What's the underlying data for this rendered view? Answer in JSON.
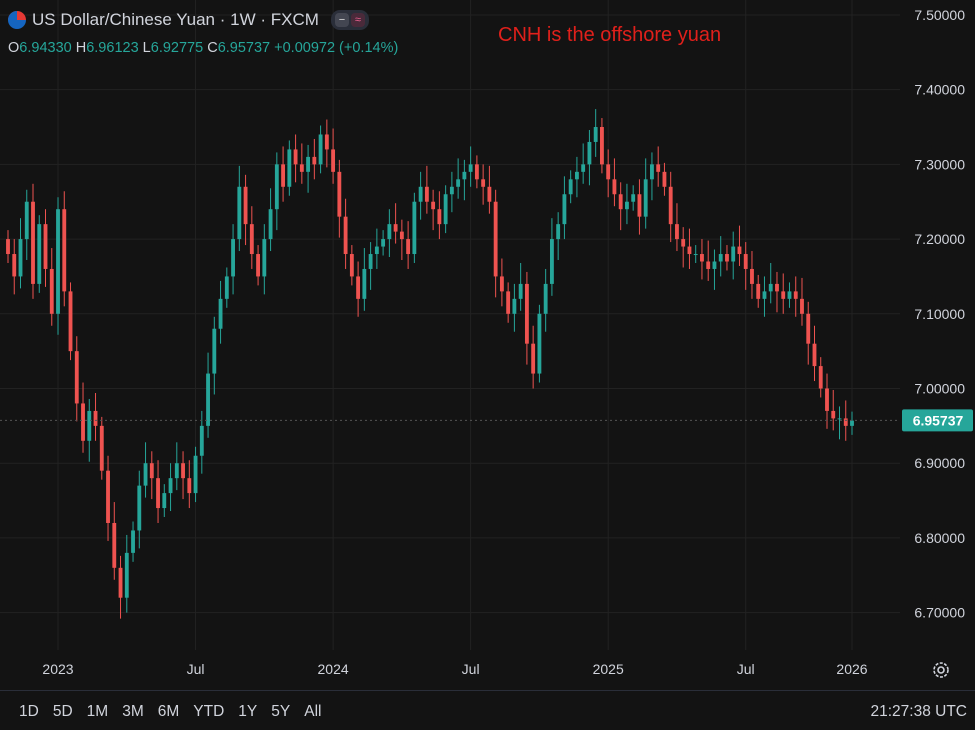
{
  "header": {
    "symbol_title": "US Dollar/Chinese Yuan · 1W · FXCM",
    "ohlc": {
      "o_label": "O",
      "o": "6.94330",
      "h_label": "H",
      "h": "6.96123",
      "l_label": "L",
      "l": "6.92775",
      "c_label": "C",
      "c": "6.95737",
      "change": "+0.00972 (+0.14%)"
    }
  },
  "annotation": "CNH is the offshore yuan",
  "icons": {
    "flag": "us-flag-icon",
    "settings": "gear-icon",
    "indicator_a": "minus-icon",
    "indicator_b": "wave-icon"
  },
  "colors": {
    "up": "#26a69a",
    "down": "#ef5350",
    "background": "#131313",
    "grid": "#222222",
    "annotation": "#e0201b"
  },
  "price_label": "6.95737",
  "range_buttons": [
    "1D",
    "5D",
    "1M",
    "3M",
    "6M",
    "YTD",
    "1Y",
    "5Y",
    "All"
  ],
  "clock": "21:27:38 UTC",
  "chart_data": {
    "type": "candlestick",
    "title": "US Dollar/Chinese Yuan · 1W · FXCM",
    "ylim": [
      6.65,
      7.52
    ],
    "y_ticks": [
      "7.50000",
      "7.40000",
      "7.30000",
      "7.20000",
      "7.10000",
      "7.00000",
      "6.90000",
      "6.80000",
      "6.70000"
    ],
    "x_ticks": [
      "2023",
      "Jul",
      "2024",
      "Jul",
      "2025",
      "Jul",
      "2026"
    ],
    "grid": true,
    "last_price": 6.95737,
    "close_series": [
      7.18,
      7.15,
      7.2,
      7.25,
      7.14,
      7.22,
      7.16,
      7.1,
      7.24,
      7.13,
      7.05,
      6.98,
      6.93,
      6.97,
      6.95,
      6.89,
      6.82,
      6.76,
      6.72,
      6.78,
      6.81,
      6.87,
      6.9,
      6.88,
      6.84,
      6.86,
      6.88,
      6.9,
      6.88,
      6.86,
      6.91,
      6.95,
      7.02,
      7.08,
      7.12,
      7.15,
      7.2,
      7.27,
      7.22,
      7.18,
      7.15,
      7.2,
      7.24,
      7.3,
      7.27,
      7.32,
      7.3,
      7.29,
      7.31,
      7.3,
      7.34,
      7.32,
      7.29,
      7.23,
      7.18,
      7.15,
      7.12,
      7.16,
      7.18,
      7.19,
      7.2,
      7.22,
      7.21,
      7.2,
      7.18,
      7.25,
      7.27,
      7.25,
      7.24,
      7.22,
      7.26,
      7.27,
      7.28,
      7.29,
      7.3,
      7.28,
      7.27,
      7.25,
      7.15,
      7.13,
      7.1,
      7.12,
      7.14,
      7.06,
      7.02,
      7.1,
      7.14,
      7.2,
      7.22,
      7.26,
      7.28,
      7.29,
      7.3,
      7.33,
      7.35,
      7.3,
      7.28,
      7.26,
      7.24,
      7.25,
      7.26,
      7.23,
      7.28,
      7.3,
      7.29,
      7.27,
      7.22,
      7.2,
      7.19,
      7.18,
      7.18,
      7.17,
      7.16,
      7.17,
      7.18,
      7.17,
      7.19,
      7.18,
      7.16,
      7.14,
      7.12,
      7.13,
      7.14,
      7.13,
      7.12,
      7.13,
      7.12,
      7.1,
      7.06,
      7.03,
      7.0,
      6.97,
      6.96,
      6.96,
      6.95,
      6.957
    ],
    "series_note": ""
  }
}
